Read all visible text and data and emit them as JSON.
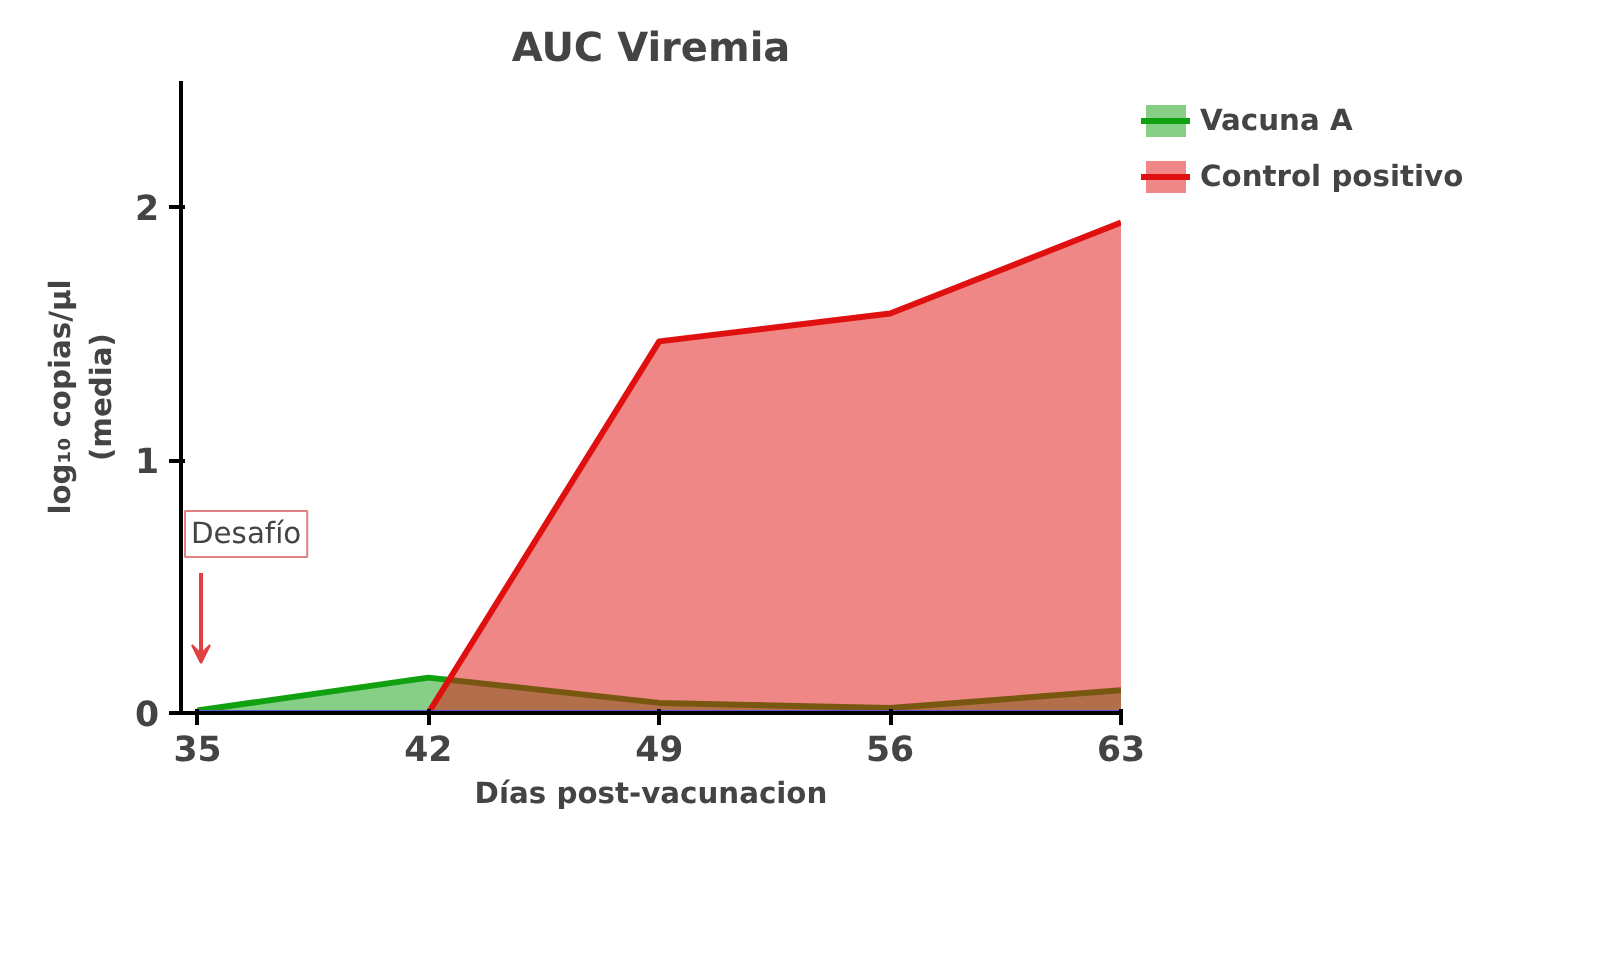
{
  "chart_data": {
    "type": "area",
    "title": "AUC Viremia",
    "xlabel": "Días post-vacunacion",
    "ylabel": "log₁₀ copias/µl\n(media)",
    "x": [
      35,
      42,
      49,
      56,
      63
    ],
    "series": [
      {
        "color": "#5a5ad8",
        "type": "line",
        "values": [
          0,
          0,
          0,
          0,
          0
        ]
      },
      {
        "name": "Vacuna A",
        "color": "#10a010",
        "values": [
          0.01,
          0.14,
          0.04,
          0.02,
          0.09
        ]
      },
      {
        "name": "Control positivo",
        "color": "#e01010",
        "x": [
          42,
          49,
          56,
          63
        ],
        "values": [
          0,
          1.47,
          1.58,
          1.94
        ]
      }
    ],
    "xlim": [
      34.5,
      63
    ],
    "ylim": [
      0,
      2.5
    ],
    "xticks": [
      35,
      42,
      49,
      56,
      63
    ],
    "yticks": [
      0,
      1,
      2
    ],
    "annotations": [
      "Desafío"
    ],
    "grid": false,
    "legend": "top right",
    "marker": "none",
    "line_style": "solid"
  }
}
